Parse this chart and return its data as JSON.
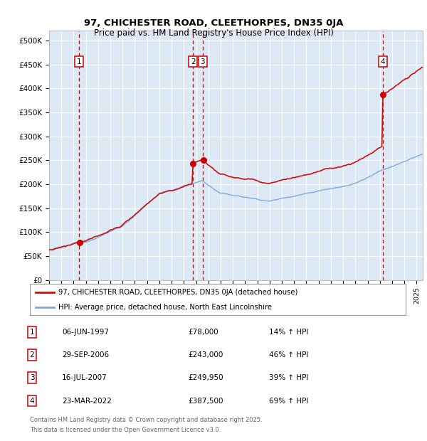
{
  "title1": "97, CHICHESTER ROAD, CLEETHORPES, DN35 0JA",
  "title2": "Price paid vs. HM Land Registry's House Price Index (HPI)",
  "ylabel_ticks": [
    "£0",
    "£50K",
    "£100K",
    "£150K",
    "£200K",
    "£250K",
    "£300K",
    "£350K",
    "£400K",
    "£450K",
    "£500K"
  ],
  "ytick_values": [
    0,
    50000,
    100000,
    150000,
    200000,
    250000,
    300000,
    350000,
    400000,
    450000,
    500000
  ],
  "ylim": [
    0,
    520000
  ],
  "xlim_start": 1995.0,
  "xlim_end": 2025.5,
  "plot_bg_color": "#dce9f5",
  "grid_color": "#ffffff",
  "sale_dates": [
    1997.44,
    2006.75,
    2007.54,
    2022.23
  ],
  "sale_prices": [
    78000,
    243000,
    249950,
    387500
  ],
  "sale_labels": [
    "1",
    "2",
    "3",
    "4"
  ],
  "vline_color": "#cc0000",
  "sale_marker_color": "#cc0000",
  "legend_label_red": "97, CHICHESTER ROAD, CLEETHORPES, DN35 0JA (detached house)",
  "legend_label_blue": "HPI: Average price, detached house, North East Lincolnshire",
  "table_rows": [
    [
      "1",
      "06-JUN-1997",
      "£78,000",
      "14% ↑ HPI"
    ],
    [
      "2",
      "29-SEP-2006",
      "£243,000",
      "46% ↑ HPI"
    ],
    [
      "3",
      "16-JUL-2007",
      "£249,950",
      "39% ↑ HPI"
    ],
    [
      "4",
      "23-MAR-2022",
      "£387,500",
      "69% ↑ HPI"
    ]
  ],
  "footnote1": "Contains HM Land Registry data © Crown copyright and database right 2025.",
  "footnote2": "This data is licensed under the Open Government Licence v3.0.",
  "red_line_color": "#cc1111",
  "blue_line_color": "#7aaadd"
}
